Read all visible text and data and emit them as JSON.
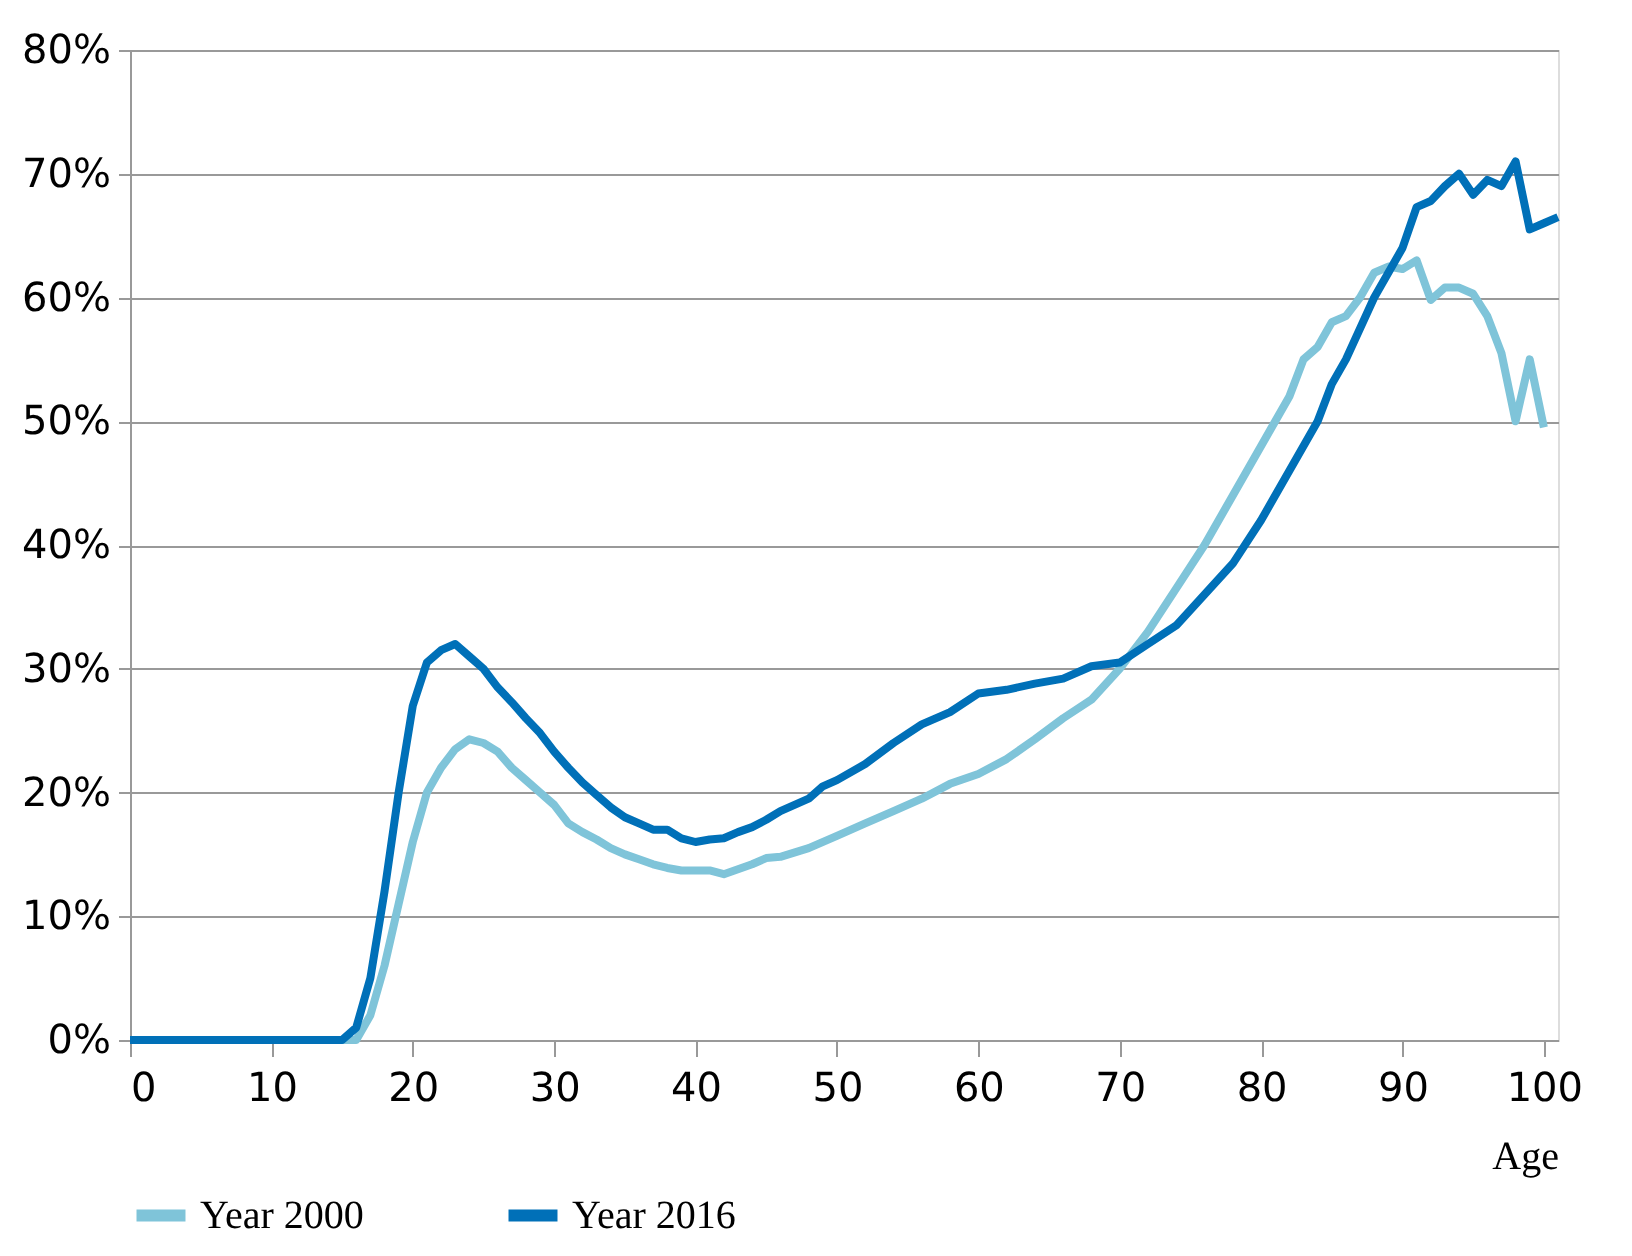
{
  "chart_data": {
    "type": "line",
    "xlabel": "Age",
    "legend": "bottom",
    "grid": "y",
    "line_style": "solid",
    "marker": "none",
    "xlim": [
      0,
      101
    ],
    "xticks": [
      0,
      10,
      20,
      30,
      40,
      50,
      60,
      70,
      80,
      90,
      100
    ],
    "ylim": [
      0,
      80
    ],
    "yticks": [
      {
        "value": 0,
        "label": "0%"
      },
      {
        "value": 10,
        "label": "10%"
      },
      {
        "value": 20,
        "label": "20%"
      },
      {
        "value": 30,
        "label": "30%"
      },
      {
        "value": 40,
        "label": "40%"
      },
      {
        "value": 50,
        "label": "50%"
      },
      {
        "value": 60,
        "label": "60%"
      },
      {
        "value": 70,
        "label": "70%"
      },
      {
        "value": 80,
        "label": "80%"
      }
    ],
    "series": [
      {
        "name": "Year 2000",
        "color": "#7fc4d9",
        "x": [
          0,
          16,
          17,
          18,
          19,
          20,
          21,
          22,
          23,
          24,
          25,
          26,
          27,
          28,
          29,
          30,
          31,
          32,
          33,
          34,
          35,
          36,
          37,
          38,
          39,
          40,
          41,
          42,
          43,
          44,
          45,
          46,
          48,
          50,
          52,
          54,
          56,
          58,
          60,
          62,
          64,
          66,
          68,
          70,
          72,
          74,
          76,
          78,
          80,
          82,
          83,
          84,
          85,
          86,
          87,
          88,
          89,
          90,
          91,
          92,
          93,
          94,
          95,
          96,
          97,
          98,
          99,
          100
        ],
        "values": [
          0,
          0,
          2,
          6,
          11,
          16,
          20,
          22,
          23.5,
          24.3,
          24,
          23.3,
          22,
          21,
          20,
          19,
          17.5,
          16.8,
          16.2,
          15.5,
          15,
          14.6,
          14.2,
          13.9,
          13.7,
          13.7,
          13.7,
          13.4,
          13.8,
          14.2,
          14.7,
          14.8,
          15.5,
          16.5,
          17.5,
          18.5,
          19.5,
          20.7,
          21.5,
          22.7,
          24.3,
          26,
          27.5,
          30,
          33,
          36.5,
          40,
          44,
          48,
          52,
          55,
          56,
          58,
          58.5,
          60,
          62,
          62.5,
          62.3,
          63,
          59.8,
          60.8,
          60.8,
          60.3,
          58.5,
          55.5,
          50,
          55,
          49.5
        ]
      },
      {
        "name": "Year 2016",
        "color": "#0070b8",
        "x": [
          0,
          15,
          16,
          17,
          18,
          19,
          20,
          21,
          22,
          23,
          24,
          25,
          26,
          27,
          28,
          29,
          30,
          31,
          32,
          33,
          34,
          35,
          36,
          37,
          38,
          39,
          40,
          41,
          42,
          43,
          44,
          45,
          46,
          47,
          48,
          49,
          50,
          52,
          54,
          56,
          58,
          60,
          62,
          64,
          66,
          68,
          70,
          72,
          74,
          76,
          78,
          80,
          82,
          84,
          85,
          86,
          88,
          90,
          91,
          92,
          93,
          94,
          95,
          96,
          97,
          98,
          99,
          100,
          101
        ],
        "values": [
          0,
          0,
          1,
          5,
          12,
          20,
          27,
          30.5,
          31.5,
          32,
          31,
          30,
          28.5,
          27.3,
          26,
          24.8,
          23.3,
          22,
          20.8,
          19.8,
          18.8,
          18,
          17.5,
          17,
          17,
          16.3,
          16,
          16.2,
          16.3,
          16.8,
          17.2,
          17.8,
          18.5,
          19,
          19.5,
          20.5,
          21,
          22.3,
          24,
          25.5,
          26.5,
          28,
          28.3,
          28.8,
          29.2,
          30.2,
          30.5,
          32,
          33.5,
          36,
          38.5,
          42,
          46,
          50,
          53,
          55,
          60,
          64,
          67.3,
          67.8,
          69,
          70,
          68.3,
          69.5,
          69,
          71,
          65.5,
          66,
          66.5
        ]
      }
    ]
  }
}
